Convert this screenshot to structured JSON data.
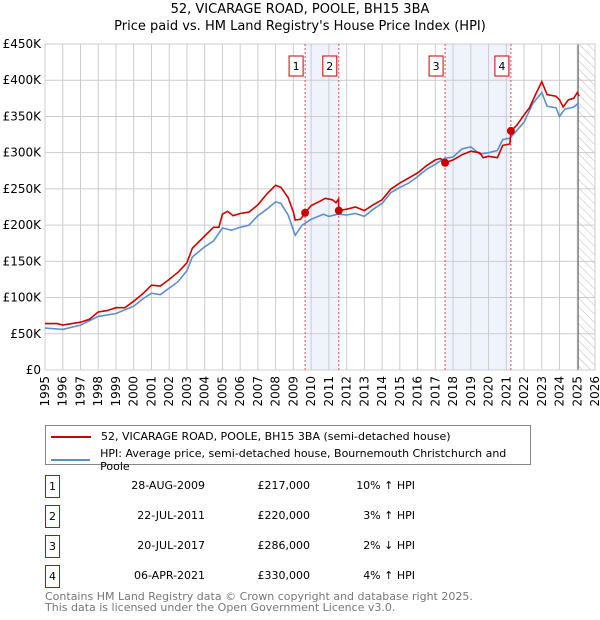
{
  "chart_data": {
    "type": "line",
    "title": "52, VICARAGE ROAD, POOLE, BH15 3BA",
    "subtitle": "Price paid vs. HM Land Registry's House Price Index (HPI)",
    "xlim": [
      1995,
      2026
    ],
    "ylim": [
      0,
      450000
    ],
    "x_ticks": [
      "1995",
      "1996",
      "1997",
      "1998",
      "1999",
      "2000",
      "2001",
      "2002",
      "2003",
      "2004",
      "2005",
      "2006",
      "2007",
      "2008",
      "2009",
      "2010",
      "2011",
      "2012",
      "2013",
      "2014",
      "2015",
      "2016",
      "2017",
      "2018",
      "2019",
      "2020",
      "2021",
      "2022",
      "2023",
      "2024",
      "2025",
      "2026"
    ],
    "y_ticks": [
      {
        "v": 0,
        "label": "£0"
      },
      {
        "v": 50000,
        "label": "£50K"
      },
      {
        "v": 100000,
        "label": "£100K"
      },
      {
        "v": 150000,
        "label": "£150K"
      },
      {
        "v": 200000,
        "label": "£200K"
      },
      {
        "v": 250000,
        "label": "£250K"
      },
      {
        "v": 300000,
        "label": "£300K"
      },
      {
        "v": 350000,
        "label": "£350K"
      },
      {
        "v": 400000,
        "label": "£400K"
      },
      {
        "v": 450000,
        "label": "£450K"
      }
    ],
    "grid": true,
    "shaded_ranges": [
      [
        2009.66,
        2011.56
      ],
      [
        2017.55,
        2021.26
      ]
    ],
    "forecast_hatch_from": 2025.05,
    "series": [
      {
        "name": "52, VICARAGE ROAD, POOLE, BH15 3BA (semi-detached house)",
        "color": "#cc0000",
        "x": [
          1995,
          1995.7,
          1996,
          1997,
          1997.5,
          1998,
          1998.5,
          1999,
          1999.5,
          2000,
          2000.5,
          2001,
          2001.5,
          2002,
          2002.5,
          2003,
          2003.3,
          2004,
          2004.5,
          2004.8,
          2005,
          2005.3,
          2005.6,
          2006,
          2006.5,
          2007,
          2007.5,
          2008,
          2008.3,
          2008.7,
          2009,
          2009.1,
          2009.4,
          2009.66,
          2010,
          2010.5,
          2010.8,
          2011.2,
          2011.4,
          2011.55,
          2011.56,
          2012,
          2012.5,
          2013,
          2013.5,
          2014,
          2014.5,
          2015,
          2015.5,
          2016,
          2016.5,
          2017,
          2017.3,
          2017.55,
          2018,
          2018.5,
          2019,
          2019.5,
          2019.7,
          2020,
          2020.5,
          2020.8,
          2021.2,
          2021.27,
          2021.6,
          2022,
          2022.3,
          2022.7,
          2023,
          2023.3,
          2023.8,
          2024,
          2024.2,
          2024.5,
          2024.8,
          2025,
          2025.1
        ],
        "y": [
          64,
          64,
          62,
          66,
          70,
          80,
          82,
          86,
          86,
          95,
          105,
          117,
          116,
          125,
          135,
          148,
          168,
          185,
          197,
          197,
          215,
          219,
          213,
          216,
          218,
          228,
          243,
          255,
          252,
          238,
          218,
          207,
          208,
          217,
          227,
          233,
          237,
          235,
          231,
          236,
          220,
          222,
          225,
          220,
          228,
          235,
          250,
          258,
          265,
          272,
          282,
          290,
          292,
          286,
          290,
          297,
          302,
          300,
          293,
          295,
          293,
          310,
          312,
          330,
          338,
          352,
          362,
          383,
          398,
          380,
          378,
          373,
          363,
          373,
          375,
          383,
          378
        ]
      },
      {
        "name": "HPI: Average price, semi-detached house, Bournemouth Christchurch and Poole",
        "color": "#5b8fd0",
        "x": [
          1995,
          1996,
          1997,
          1998,
          1999,
          2000,
          2000.5,
          2001,
          2001.5,
          2002,
          2002.5,
          2003,
          2003.3,
          2004,
          2004.5,
          2005,
          2005.5,
          2006,
          2006.5,
          2007,
          2007.5,
          2008,
          2008.3,
          2008.7,
          2009,
          2009.1,
          2009.5,
          2010,
          2010.7,
          2011,
          2011.5,
          2012,
          2012.5,
          2013,
          2013.5,
          2014,
          2014.5,
          2015,
          2015.5,
          2016,
          2016.5,
          2017,
          2017.5,
          2018,
          2018.5,
          2019,
          2019.5,
          2020,
          2020.5,
          2020.8,
          2021.2,
          2021.5,
          2022,
          2022.5,
          2023,
          2023.3,
          2023.8,
          2024,
          2024.3,
          2024.8,
          2025,
          2025.1
        ],
        "y": [
          58,
          56,
          62,
          74,
          78,
          88,
          98,
          106,
          104,
          113,
          122,
          137,
          156,
          170,
          178,
          196,
          193,
          197,
          200,
          213,
          222,
          232,
          230,
          214,
          193,
          186,
          200,
          208,
          215,
          212,
          215,
          214,
          216,
          212,
          222,
          230,
          245,
          252,
          258,
          267,
          277,
          284,
          292,
          294,
          305,
          308,
          298,
          300,
          303,
          318,
          320,
          328,
          342,
          368,
          383,
          364,
          362,
          350,
          360,
          363,
          367,
          361
        ]
      }
    ],
    "y_units": "thousands GBP",
    "sales": [
      {
        "n": "1",
        "x": 2009.66,
        "y": 217
      },
      {
        "n": "2",
        "x": 2011.56,
        "y": 220
      },
      {
        "n": "3",
        "x": 2017.55,
        "y": 286
      },
      {
        "n": "4",
        "x": 2021.26,
        "y": 330
      }
    ]
  },
  "legend": {
    "red": "52, VICARAGE ROAD, POOLE, BH15 3BA (semi-detached house)",
    "blue": "HPI: Average price, semi-detached house, Bournemouth Christchurch and Poole"
  },
  "transactions": [
    {
      "n": "1",
      "date": "28-AUG-2009",
      "price": "£217,000",
      "hpi": "10% ↑ HPI"
    },
    {
      "n": "2",
      "date": "22-JUL-2011",
      "price": "£220,000",
      "hpi": "3% ↑ HPI"
    },
    {
      "n": "3",
      "date": "20-JUL-2017",
      "price": "£286,000",
      "hpi": "2% ↓ HPI"
    },
    {
      "n": "4",
      "date": "06-APR-2021",
      "price": "£330,000",
      "hpi": "4% ↑ HPI"
    }
  ],
  "footer": {
    "line1": "Contains HM Land Registry data © Crown copyright and database right 2025.",
    "line2": "This data is licensed under the Open Government Licence v3.0."
  }
}
